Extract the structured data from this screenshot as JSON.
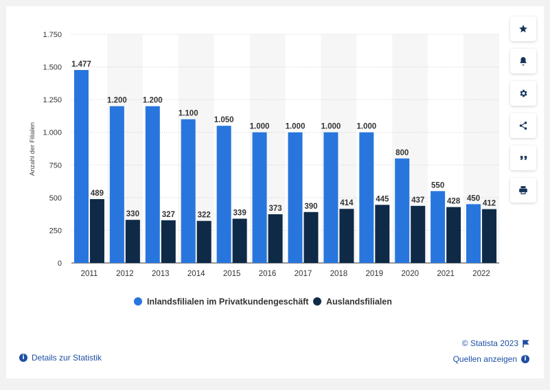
{
  "chart_data": {
    "type": "bar",
    "categories": [
      "2011",
      "2012",
      "2013",
      "2014",
      "2015",
      "2016",
      "2017",
      "2018",
      "2019",
      "2020",
      "2021",
      "2022"
    ],
    "series": [
      {
        "name": "Inlandsfilialen im Privatkundengeschäft",
        "color": "#2876dd",
        "values": [
          1477,
          1200,
          1200,
          1100,
          1050,
          1000,
          1000,
          1000,
          1000,
          800,
          550,
          450
        ],
        "labels": [
          "1.477",
          "1.200",
          "1.200",
          "1.100",
          "1.050",
          "1.000",
          "1.000",
          "1.000",
          "1.000",
          "800",
          "550",
          "450"
        ]
      },
      {
        "name": "Auslandsfilialen",
        "color": "#0f2a47",
        "values": [
          489,
          330,
          327,
          322,
          339,
          373,
          390,
          414,
          445,
          437,
          428,
          412
        ],
        "labels": [
          "489",
          "330",
          "327",
          "322",
          "339",
          "373",
          "390",
          "414",
          "445",
          "437",
          "428",
          "412"
        ]
      }
    ],
    "ylabel": "Anzahl der Filialen",
    "ylim": [
      0,
      1750
    ],
    "yticks": [
      0,
      250,
      500,
      750,
      1000,
      1250,
      1500,
      1750
    ],
    "ytick_labels": [
      "0",
      "250",
      "500",
      "750",
      "1.000",
      "1.250",
      "1.500",
      "1.750"
    ],
    "grid": true,
    "legend_position": "bottom"
  },
  "toolbar": {
    "buttons": [
      "star-icon",
      "bell-icon",
      "gear-icon",
      "share-icon",
      "quote-icon",
      "print-icon"
    ]
  },
  "footer": {
    "details_label": "Details zur Statistik",
    "copyright_label": "© Statista 2023",
    "sources_label": "Quellen anzeigen"
  }
}
